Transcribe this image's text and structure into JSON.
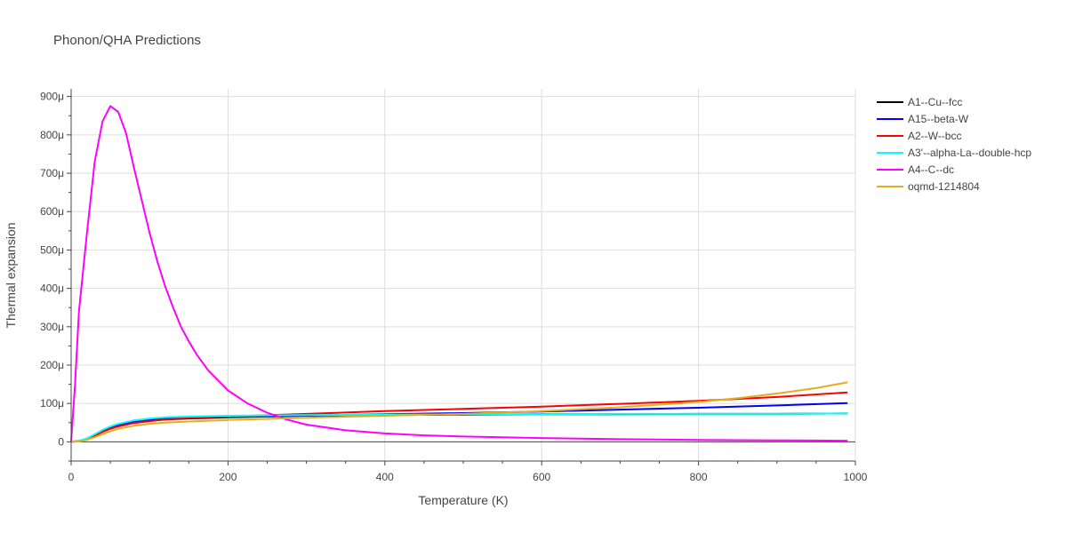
{
  "chart_data": {
    "type": "line",
    "title": "Phonon/QHA Predictions",
    "xlabel": "Temperature (K)",
    "ylabel": "Thermal expansion",
    "xlim": [
      0,
      1000
    ],
    "ylim": [
      -5e-05,
      0.00092
    ],
    "x_ticks": [
      0,
      200,
      400,
      600,
      800,
      1000
    ],
    "x_tick_labels": [
      "0",
      "200",
      "400",
      "600",
      "800",
      "1000"
    ],
    "y_ticks": [
      0,
      0.0001,
      0.0002,
      0.0003,
      0.0004,
      0.0005,
      0.0006,
      0.0007,
      0.0008,
      0.0009
    ],
    "y_tick_labels": [
      "0",
      "100μ",
      "200μ",
      "300μ",
      "400μ",
      "500μ",
      "600μ",
      "700μ",
      "800μ",
      "900μ"
    ],
    "grid": true,
    "legend_position": "top-right",
    "series": [
      {
        "name": "A1--Cu--fcc",
        "color": "#000000",
        "x": [
          0,
          10,
          20,
          30,
          40,
          50,
          60,
          80,
          100,
          120,
          150,
          200,
          300,
          400,
          500,
          600,
          700,
          800,
          900,
          990
        ],
        "y": [
          0,
          2e-06,
          8e-06,
          1.8e-05,
          2.8e-05,
          3.6e-05,
          4.2e-05,
          5e-05,
          5.5e-05,
          5.8e-05,
          6.1e-05,
          6.4e-05,
          6.8e-05,
          7e-05,
          7.1e-05,
          7.2e-05,
          7.2e-05,
          7.3e-05,
          7.3e-05,
          7.4e-05
        ]
      },
      {
        "name": "A15--beta-W",
        "color": "#0000ff",
        "x": [
          0,
          10,
          20,
          30,
          40,
          50,
          60,
          80,
          100,
          120,
          150,
          200,
          300,
          400,
          500,
          600,
          700,
          800,
          900,
          990
        ],
        "y": [
          0,
          2e-06,
          8e-06,
          1.8e-05,
          2.9e-05,
          3.8e-05,
          4.4e-05,
          5.3e-05,
          5.8e-05,
          6.1e-05,
          6.4e-05,
          6.6e-05,
          6.9e-05,
          7.2e-05,
          7.5e-05,
          7.9e-05,
          8.4e-05,
          8.9e-05,
          9.5e-05,
          0.000101
        ]
      },
      {
        "name": "A2--W--bcc",
        "color": "#ff0000",
        "x": [
          0,
          10,
          20,
          30,
          40,
          50,
          60,
          80,
          100,
          120,
          150,
          200,
          300,
          400,
          500,
          600,
          700,
          800,
          900,
          990
        ],
        "y": [
          0,
          2e-06,
          7e-06,
          1.6e-05,
          2.6e-05,
          3.4e-05,
          4e-05,
          4.9e-05,
          5.4e-05,
          5.8e-05,
          6.2e-05,
          6.6e-05,
          7.3e-05,
          8e-05,
          8.6e-05,
          9.2e-05,
          9.9e-05,
          0.000107,
          0.000117,
          0.000129
        ]
      },
      {
        "name": "A3'--alpha-La--double-hcp",
        "color": "#00ffff",
        "x": [
          0,
          10,
          20,
          30,
          40,
          50,
          60,
          80,
          100,
          120,
          150,
          200,
          300,
          400,
          500,
          600,
          700,
          800,
          900,
          990
        ],
        "y": [
          0,
          2e-06,
          9e-06,
          2e-05,
          3.1e-05,
          4e-05,
          4.7e-05,
          5.6e-05,
          6.1e-05,
          6.4e-05,
          6.6e-05,
          6.8e-05,
          7e-05,
          7.1e-05,
          7.2e-05,
          7.2e-05,
          7.3e-05,
          7.3e-05,
          7.3e-05,
          7.4e-05
        ]
      },
      {
        "name": "A4--C--dc",
        "color": "#ff00ff",
        "x": [
          0,
          5,
          10,
          20,
          30,
          40,
          50,
          60,
          70,
          80,
          90,
          100,
          110,
          120,
          130,
          140,
          150,
          160,
          175,
          200,
          225,
          250,
          275,
          300,
          350,
          400,
          450,
          500,
          600,
          700,
          800,
          900,
          990
        ],
        "y": [
          0,
          0.00015,
          0.00034,
          0.00054,
          0.00073,
          0.000835,
          0.000875,
          0.00086,
          0.000805,
          0.000715,
          0.00063,
          0.000545,
          0.00047,
          0.000405,
          0.00035,
          0.0003,
          0.000262,
          0.000228,
          0.000186,
          0.000134,
          0.0001,
          7.6e-05,
          5.8e-05,
          4.5e-05,
          3e-05,
          2.2e-05,
          1.7e-05,
          1.4e-05,
          1e-05,
          7e-06,
          5e-06,
          4e-06,
          3e-06
        ]
      },
      {
        "name": "oqmd-1214804",
        "color": "#e6ac1e",
        "x": [
          0,
          10,
          20,
          30,
          40,
          50,
          60,
          80,
          100,
          120,
          150,
          200,
          300,
          400,
          500,
          600,
          700,
          800,
          850,
          900,
          950,
          990
        ],
        "y": [
          0,
          1e-06,
          5e-06,
          1.2e-05,
          2e-05,
          2.8e-05,
          3.4e-05,
          4.2e-05,
          4.7e-05,
          5e-05,
          5.3e-05,
          5.7e-05,
          6.3e-05,
          6.8e-05,
          7.3e-05,
          8e-05,
          9e-05,
          0.000104,
          0.000114,
          0.000126,
          0.00014,
          0.000155
        ]
      }
    ]
  }
}
